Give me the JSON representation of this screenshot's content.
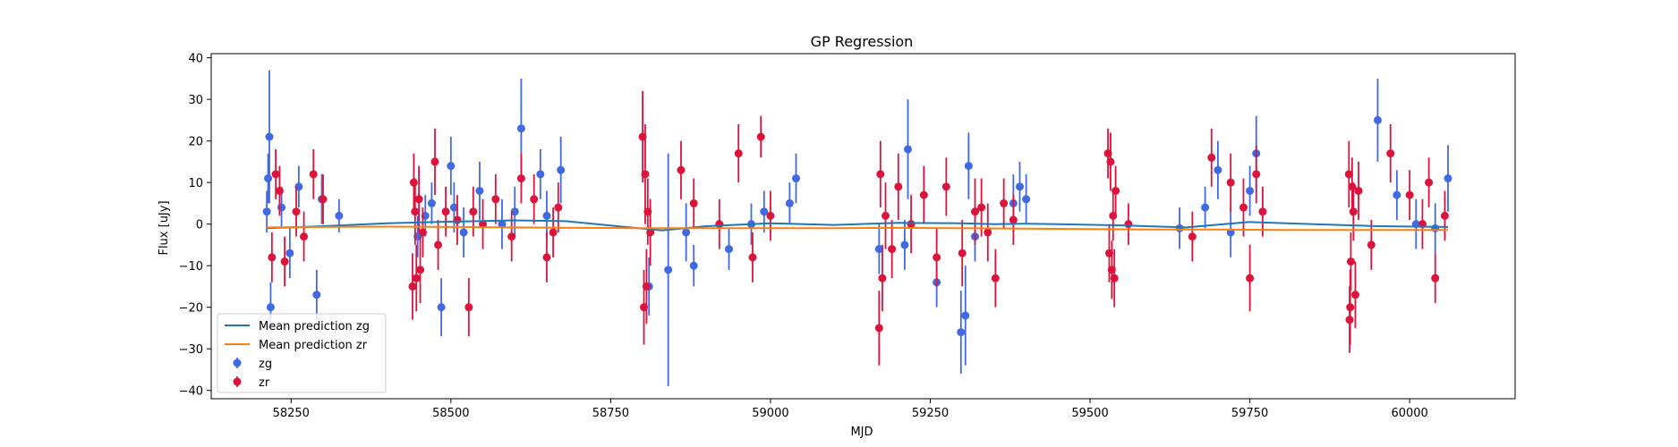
{
  "chart_data": {
    "type": "scatter",
    "title": "GP Regression",
    "xlabel": "MJD",
    "ylabel": "Flux [uJy]",
    "xlim": [
      58125,
      60165
    ],
    "ylim": [
      -42,
      41
    ],
    "x_ticks": [
      58250,
      58500,
      58750,
      59000,
      59250,
      59500,
      59750,
      60000
    ],
    "y_ticks": [
      -40,
      -30,
      -20,
      -10,
      0,
      10,
      20,
      30,
      40
    ],
    "grid": false,
    "legend_position": "lower-left",
    "legend": [
      "Mean prediction zg",
      "Mean prediction zr",
      "zg",
      "zr"
    ],
    "colors": {
      "zg_points": "#4169e1",
      "zr_points": "#dc143c",
      "zg_mean": "#1f77b4",
      "zr_mean": "#ff7f0e"
    },
    "series": [
      {
        "name": "Mean prediction zg",
        "kind": "line",
        "x": [
          58212,
          58300,
          58400,
          58500,
          58600,
          58680,
          58780,
          58830,
          58900,
          59000,
          59100,
          59200,
          59300,
          59350,
          59400,
          59450,
          59550,
          59650,
          59750,
          59850,
          59950,
          60060
        ],
        "y": [
          -1.0,
          -0.5,
          0.2,
          0.6,
          0.9,
          0.7,
          -0.8,
          -1.5,
          -0.5,
          0.2,
          -0.2,
          0.3,
          0.2,
          0.0,
          0.1,
          0.0,
          -0.3,
          -0.8,
          0.5,
          0.0,
          -0.5,
          -0.7
        ]
      },
      {
        "name": "Mean prediction zr",
        "kind": "line",
        "x": [
          58212,
          58300,
          58400,
          58500,
          58600,
          58700,
          58800,
          58900,
          59000,
          59100,
          59200,
          59300,
          59400,
          59500,
          59600,
          59700,
          59800,
          59900,
          60000,
          60060
        ],
        "y": [
          -0.8,
          -0.7,
          -0.6,
          -0.7,
          -0.8,
          -0.9,
          -1.0,
          -1.0,
          -1.0,
          -1.0,
          -0.9,
          -1.0,
          -1.1,
          -1.2,
          -1.3,
          -1.3,
          -1.4,
          -1.4,
          -1.4,
          -1.4
        ]
      },
      {
        "name": "zg",
        "kind": "errorbar",
        "x": [
          58212,
          58214,
          58216,
          58218,
          58235,
          58248,
          58262,
          58290,
          58298,
          58325,
          58448,
          58460,
          58470,
          58485,
          58500,
          58505,
          58520,
          58545,
          58580,
          58600,
          58610,
          58640,
          58650,
          58672,
          58810,
          58840,
          58868,
          58880,
          58935,
          58970,
          58990,
          59030,
          59040,
          59170,
          59210,
          59215,
          59260,
          59298,
          59305,
          59310,
          59320,
          59380,
          59390,
          59400,
          59640,
          59680,
          59700,
          59720,
          59750,
          59760,
          59950,
          59980,
          60010,
          60040,
          60060
        ],
        "y": [
          3,
          11,
          21,
          -20,
          4,
          -7,
          9,
          -17,
          6,
          2,
          -3,
          2,
          5,
          -20,
          14,
          4,
          -2,
          8,
          0,
          3,
          23,
          12,
          2,
          13,
          -15,
          -11,
          -2,
          -10,
          -6,
          0,
          3,
          5,
          11,
          -6,
          -5,
          18,
          -14,
          -26,
          -22,
          14,
          -3,
          5,
          9,
          6,
          -1,
          4,
          13,
          -2,
          8,
          17,
          25,
          7,
          0,
          -1,
          11
        ],
        "err": [
          5,
          6,
          16,
          6,
          5,
          6,
          5,
          6,
          6,
          4,
          5,
          5,
          5,
          7,
          7,
          6,
          6,
          7,
          6,
          6,
          12,
          6,
          6,
          8,
          7,
          28,
          7,
          5,
          5,
          5,
          5,
          5,
          6,
          6,
          6,
          12,
          6,
          10,
          12,
          8,
          6,
          7,
          6,
          6,
          5,
          5,
          7,
          6,
          6,
          9,
          10,
          6,
          6,
          6,
          8
        ]
      },
      {
        "name": "zr",
        "kind": "errorbar",
        "x": [
          58220,
          58226,
          58232,
          58240,
          58258,
          58270,
          58285,
          58300,
          58440,
          58442,
          58444,
          58446,
          58450,
          58452,
          58456,
          58475,
          58480,
          58492,
          58510,
          58528,
          58535,
          58550,
          58570,
          58595,
          58610,
          58630,
          58650,
          58660,
          58668,
          58800,
          58802,
          58804,
          58806,
          58808,
          58812,
          58860,
          58880,
          58920,
          58950,
          58972,
          58985,
          59000,
          59170,
          59172,
          59175,
          59180,
          59190,
          59200,
          59220,
          59240,
          59260,
          59275,
          59300,
          59320,
          59330,
          59340,
          59352,
          59365,
          59380,
          59528,
          59530,
          59532,
          59534,
          59536,
          59538,
          59540,
          59560,
          59660,
          59690,
          59720,
          59740,
          59750,
          59760,
          59770,
          59905,
          59906,
          59907,
          59908,
          59910,
          59912,
          59915,
          59920,
          59940,
          59970,
          60000,
          60020,
          60030,
          60040,
          60055
        ],
        "y": [
          -8,
          12,
          8,
          -9,
          3,
          -3,
          12,
          6,
          -15,
          10,
          3,
          -13,
          6,
          -11,
          -2,
          15,
          -5,
          3,
          1,
          -20,
          3,
          0,
          6,
          -3,
          11,
          6,
          -8,
          -2,
          4,
          21,
          -20,
          12,
          -15,
          3,
          -2,
          13,
          5,
          0,
          17,
          -8,
          21,
          2,
          -25,
          12,
          -13,
          2,
          -6,
          9,
          0,
          7,
          -8,
          9,
          -7,
          3,
          4,
          -2,
          -13,
          5,
          1,
          17,
          -7,
          15,
          -11,
          2,
          -13,
          8,
          0,
          -3,
          16,
          10,
          4,
          -13,
          12,
          3,
          12,
          -23,
          -20,
          -9,
          9,
          3,
          -17,
          8,
          -5,
          17,
          7,
          0,
          10,
          -13,
          2
        ],
        "err": [
          6,
          6,
          6,
          6,
          6,
          6,
          6,
          6,
          8,
          7,
          8,
          8,
          8,
          8,
          6,
          8,
          6,
          6,
          6,
          7,
          6,
          6,
          6,
          6,
          6,
          6,
          6,
          6,
          6,
          11,
          9,
          12,
          9,
          8,
          8,
          7,
          6,
          6,
          7,
          6,
          5,
          6,
          9,
          8,
          8,
          8,
          7,
          8,
          7,
          7,
          7,
          7,
          8,
          8,
          7,
          7,
          7,
          6,
          6,
          6,
          7,
          7,
          7,
          6,
          7,
          6,
          5,
          6,
          7,
          7,
          7,
          8,
          7,
          6,
          8,
          8,
          9,
          7,
          7,
          7,
          8,
          7,
          6,
          7,
          6,
          6,
          6,
          6,
          6
        ]
      }
    ]
  }
}
